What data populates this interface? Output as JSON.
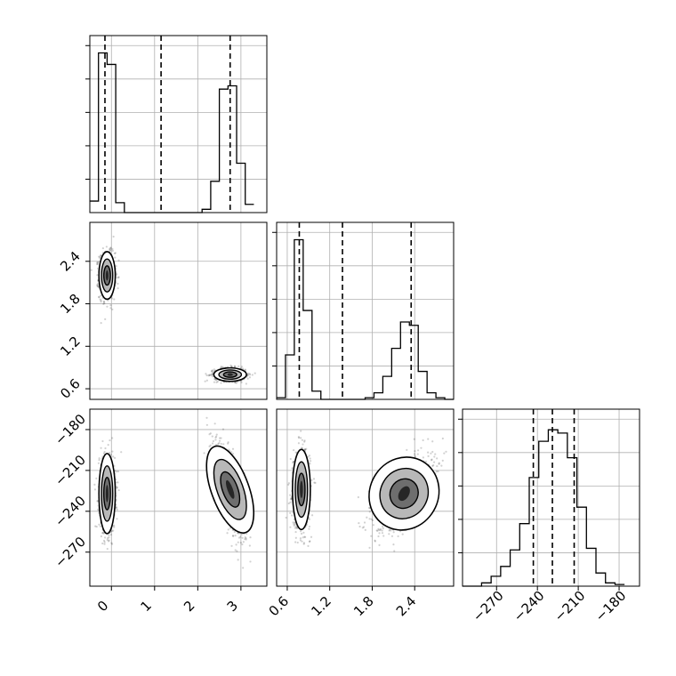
{
  "chart_data": {
    "type": "corner",
    "parameters": [
      {
        "name": "p0",
        "label": "",
        "range": [
          -0.5,
          3.6
        ],
        "ticks": [
          0,
          1,
          2,
          3
        ],
        "tick_labels": [
          "0",
          "1",
          "2",
          "3"
        ]
      },
      {
        "name": "p1",
        "label": "",
        "range": [
          0.45,
          2.95
        ],
        "ticks": [
          0.6,
          1.2,
          1.8,
          2.4
        ],
        "tick_labels": [
          "0.6",
          "1.2",
          "1.8",
          "2.4"
        ]
      },
      {
        "name": "p2",
        "label": "",
        "range": [
          -295,
          -165
        ],
        "ticks": [
          -270,
          -240,
          -210,
          -180
        ],
        "tick_labels": [
          "−270",
          "−240",
          "−210",
          "−180"
        ]
      }
    ],
    "quantiles": [
      [
        -0.15,
        1.15,
        2.75
      ],
      [
        0.77,
        1.38,
        2.35
      ],
      [
        -243,
        -229,
        -213
      ]
    ],
    "histograms": [
      {
        "bin_edges": [
          -0.5,
          -0.3,
          -0.1,
          0.1,
          0.3,
          0.5,
          0.7,
          0.9,
          1.1,
          1.3,
          1.5,
          1.7,
          1.9,
          2.1,
          2.3,
          2.5,
          2.7,
          2.9,
          3.1,
          3.3
        ],
        "counts": [
          0.07,
          0.97,
          0.9,
          0.06,
          0,
          0,
          0,
          0,
          0,
          0,
          0,
          0,
          0,
          0.02,
          0.19,
          0.75,
          0.77,
          0.3,
          0.05
        ]
      },
      {
        "bin_edges": [
          0.45,
          0.575,
          0.7,
          0.825,
          0.95,
          1.075,
          1.2,
          1.325,
          1.45,
          1.575,
          1.7,
          1.825,
          1.95,
          2.075,
          2.2,
          2.325,
          2.45,
          2.575,
          2.7,
          2.825,
          2.95
        ],
        "counts": [
          0.01,
          0.27,
          0.97,
          0.54,
          0.05,
          0,
          0,
          0,
          0,
          0,
          0.01,
          0.04,
          0.14,
          0.31,
          0.47,
          0.45,
          0.17,
          0.04,
          0.01,
          0
        ]
      },
      {
        "bin_edges": [
          -295,
          -288,
          -281,
          -274,
          -267,
          -260,
          -253,
          -246,
          -239,
          -232,
          -225,
          -218,
          -211,
          -204,
          -197,
          -190,
          -183,
          -176
        ],
        "counts": [
          0,
          0,
          0.02,
          0.06,
          0.12,
          0.22,
          0.38,
          0.66,
          0.88,
          0.95,
          0.93,
          0.78,
          0.48,
          0.23,
          0.08,
          0.02,
          0.01
        ]
      }
    ],
    "clusters": [
      {
        "mode": 0,
        "mean": [
          -0.1,
          2.2,
          -227
        ],
        "sd": [
          0.09,
          0.16,
          14
        ],
        "corr_02": 0.0,
        "corr_12": 0.0
      },
      {
        "mode": 1,
        "mean": [
          2.75,
          0.8,
          -224
        ],
        "sd": [
          0.18,
          0.045,
          16
        ],
        "corr_02": -0.7,
        "corr_12": 0.0
      },
      {
        "mode": 2,
        "mean": [
          0.0,
          0.8,
          -224
        ],
        "sd": [
          0.0,
          0.06,
          14
        ],
        "corr_02": 0.0,
        "corr_12": 0.0
      },
      {
        "mode": 3,
        "mean": [
          0.0,
          2.25,
          -227
        ],
        "sd": [
          0.0,
          0.2,
          13
        ],
        "corr_02": 0.0,
        "corr_12": 0.6
      }
    ],
    "grid": true,
    "contour_levels": [
      0.5,
      1.0,
      1.5
    ]
  }
}
